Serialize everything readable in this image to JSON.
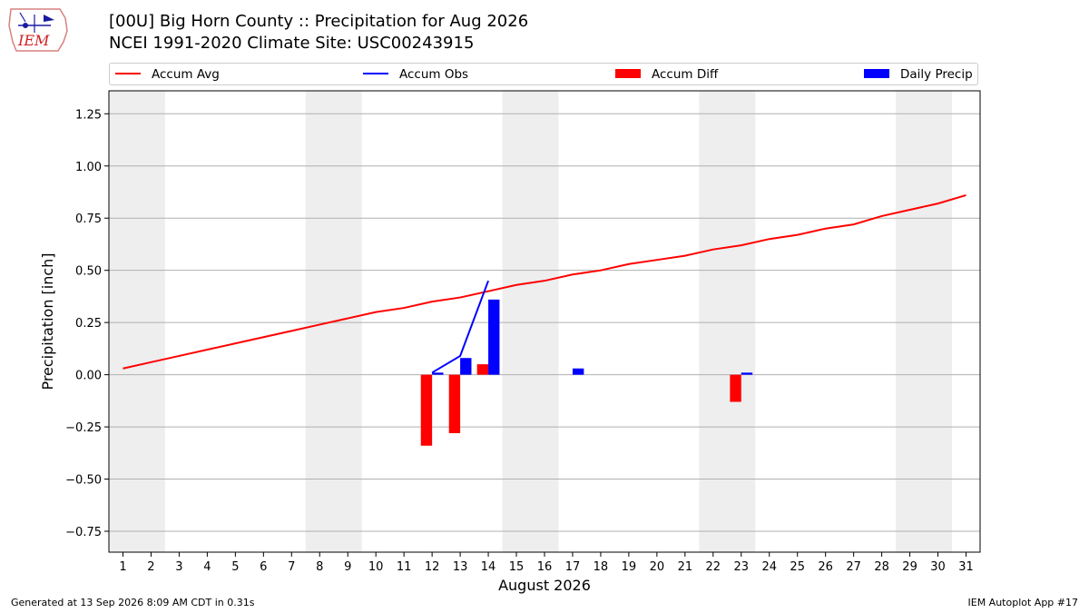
{
  "header": {
    "logo_text": "IEM",
    "title_line1": "[00U] Big Horn County :: Precipitation for Aug 2026",
    "title_line2": "NCEI 1991-2020 Climate Site: USC00243915"
  },
  "colors": {
    "accum_avg": "#ff0000",
    "accum_obs": "#0000ff",
    "accum_diff": "#ff0000",
    "daily_precip": "#0000ff",
    "weekend_shade": "#eeeeee",
    "grid": "#b0b0b0"
  },
  "legend": [
    {
      "label": "Accum Avg",
      "kind": "line",
      "color": "#ff0000"
    },
    {
      "label": "Accum Obs",
      "kind": "line",
      "color": "#0000ff"
    },
    {
      "label": "Accum Diff",
      "kind": "box",
      "color": "#ff0000"
    },
    {
      "label": "Daily Precip",
      "kind": "box",
      "color": "#0000ff"
    }
  ],
  "chart_data": {
    "type": "bar",
    "xlabel": "August 2026",
    "ylabel": "Precipitation [inch]",
    "xlim": [
      0.5,
      31.5
    ],
    "ylim": [
      -0.85,
      1.36
    ],
    "grid": true,
    "legend_position": "top",
    "days": [
      1,
      2,
      3,
      4,
      5,
      6,
      7,
      8,
      9,
      10,
      11,
      12,
      13,
      14,
      15,
      16,
      17,
      18,
      19,
      20,
      21,
      22,
      23,
      24,
      25,
      26,
      27,
      28,
      29,
      30,
      31
    ],
    "x_tick_labels": [
      "1",
      "2",
      "3",
      "4",
      "5",
      "6",
      "7",
      "8",
      "9",
      "10",
      "11",
      "12",
      "13",
      "14",
      "15",
      "16",
      "17",
      "18",
      "19",
      "20",
      "21",
      "22",
      "23",
      "24",
      "25",
      "26",
      "27",
      "28",
      "29",
      "30",
      "31"
    ],
    "y_ticks": [
      -0.75,
      -0.5,
      -0.25,
      0.0,
      0.25,
      0.5,
      0.75,
      1.0,
      1.25
    ],
    "y_tick_labels": [
      "−0.75",
      "−0.50",
      "−0.25",
      "0.00",
      "0.25",
      "0.50",
      "0.75",
      "1.00",
      "1.25"
    ],
    "weekend_spans": [
      [
        1,
        2
      ],
      [
        8,
        9
      ],
      [
        15,
        16
      ],
      [
        22,
        23
      ],
      [
        29,
        30
      ]
    ],
    "series": [
      {
        "name": "Accum Avg",
        "type": "line",
        "color": "#ff0000",
        "x": [
          1,
          2,
          3,
          4,
          5,
          6,
          7,
          8,
          9,
          10,
          11,
          12,
          13,
          14,
          15,
          16,
          17,
          18,
          19,
          20,
          21,
          22,
          23,
          24,
          25,
          26,
          27,
          28,
          29,
          30,
          31
        ],
        "values": [
          0.03,
          0.06,
          0.09,
          0.12,
          0.15,
          0.18,
          0.21,
          0.24,
          0.27,
          0.3,
          0.32,
          0.35,
          0.37,
          0.4,
          0.43,
          0.45,
          0.48,
          0.5,
          0.53,
          0.55,
          0.57,
          0.6,
          0.62,
          0.65,
          0.67,
          0.7,
          0.72,
          0.76,
          0.79,
          0.82,
          0.86
        ]
      },
      {
        "name": "Accum Obs",
        "type": "line",
        "color": "#0000ff",
        "x": [
          12,
          13,
          14
        ],
        "values": [
          0.01,
          0.09,
          0.45
        ]
      },
      {
        "name": "Accum Diff",
        "type": "bar",
        "color": "#ff0000",
        "x": [
          12,
          13,
          14,
          23
        ],
        "values": [
          -0.34,
          -0.28,
          0.05,
          -0.13
        ]
      },
      {
        "name": "Daily Precip",
        "type": "bar",
        "color": "#0000ff",
        "x": [
          12,
          13,
          14,
          17,
          23
        ],
        "values": [
          0.01,
          0.08,
          0.36,
          0.03,
          0.01
        ]
      }
    ]
  },
  "footer": {
    "left": "Generated at 13 Sep 2026 8:09 AM CDT in 0.31s",
    "right": "IEM Autoplot App #17"
  }
}
